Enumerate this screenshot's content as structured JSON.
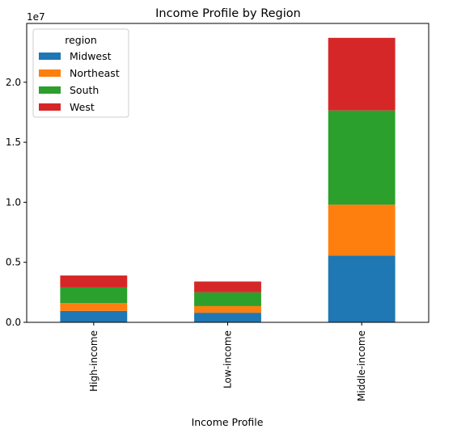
{
  "chart_data": {
    "type": "bar",
    "stacked": true,
    "title": "Income Profile by Region",
    "xlabel": "Income Profile",
    "ylabel": "",
    "y_scale_label": "1e7",
    "categories": [
      "High-income",
      "Low-income",
      "Middle-income"
    ],
    "series": [
      {
        "name": "Midwest",
        "color": "#1f77b4",
        "values": [
          950000,
          800000,
          5550000
        ]
      },
      {
        "name": "Northeast",
        "color": "#ff7f0e",
        "values": [
          650000,
          550000,
          4250000
        ]
      },
      {
        "name": "South",
        "color": "#2ca02c",
        "values": [
          1300000,
          1150000,
          7850000
        ]
      },
      {
        "name": "West",
        "color": "#d62728",
        "values": [
          1000000,
          900000,
          6050000
        ]
      }
    ],
    "ylim": [
      0,
      24900000
    ],
    "yticks": [
      0,
      5000000,
      10000000,
      15000000,
      20000000
    ],
    "ytick_labels": [
      "0.0",
      "0.5",
      "1.0",
      "1.5",
      "2.0"
    ],
    "legend": {
      "title": "region",
      "placement": "top-left"
    },
    "grid": false
  }
}
